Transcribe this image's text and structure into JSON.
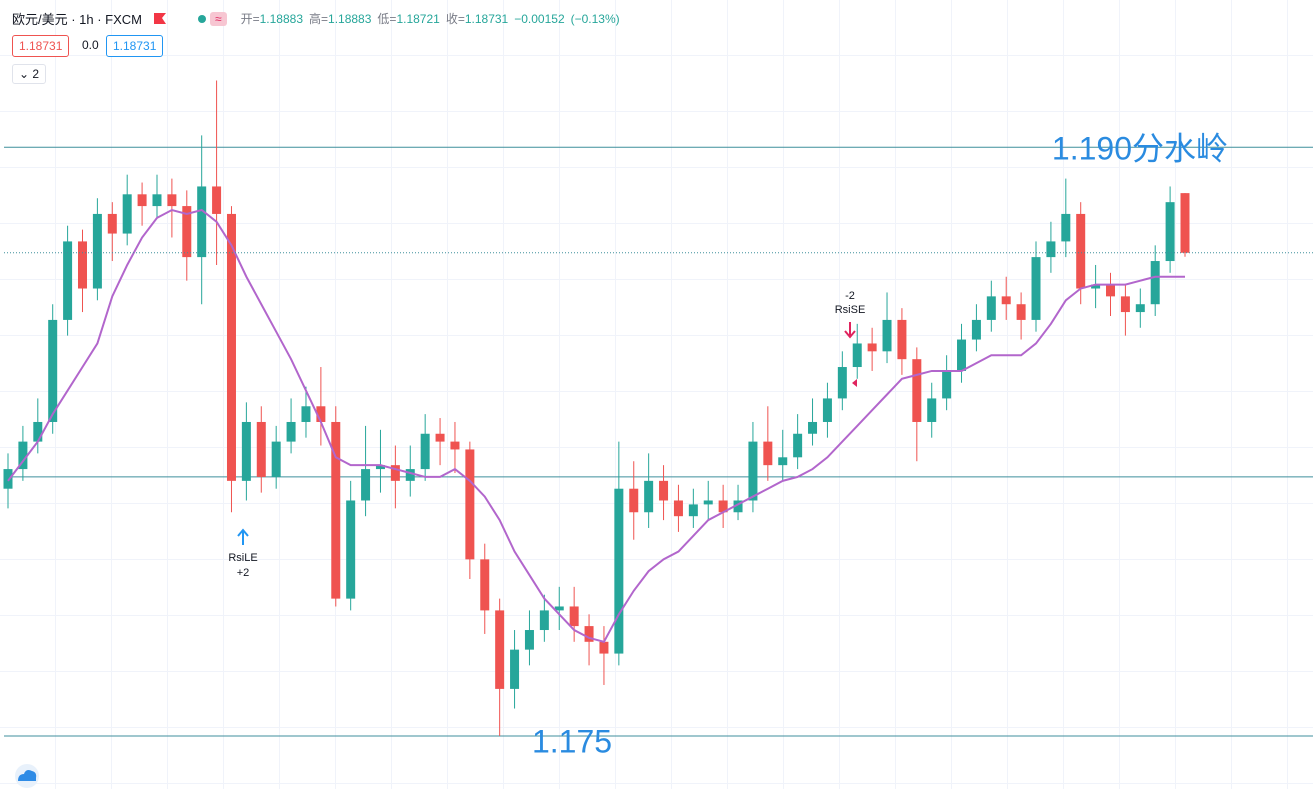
{
  "chart_data": {
    "type": "candlestick",
    "title": "欧元/美元 · 1h · FXCM",
    "badge": "≈",
    "ohlc": [
      {
        "label": "开=",
        "value": "1.18883"
      },
      {
        "label": "高=",
        "value": "1.18883"
      },
      {
        "label": "低=",
        "value": "1.18721"
      },
      {
        "label": "收=",
        "value": "1.18731"
      }
    ],
    "change": "−0.00152",
    "change_pct": "(−0.13%)",
    "bid": "1.18731",
    "spread": "0.0",
    "ask": "1.18731",
    "indicator_count": "2",
    "ylim": [
      1.17365,
      1.19375
    ],
    "up_color": "#26a69a",
    "down_color": "#ef5350",
    "open": [
      1.1813,
      1.1818,
      1.1825,
      1.183,
      1.1856,
      1.1876,
      1.1864,
      1.1883,
      1.1878,
      1.1888,
      1.1885,
      1.1888,
      1.1885,
      1.1872,
      1.189,
      1.1883,
      1.1815,
      1.183,
      1.1816,
      1.1825,
      1.183,
      1.1834,
      1.183,
      1.1785,
      1.181,
      1.1818,
      1.1819,
      1.1815,
      1.1818,
      1.1827,
      1.1825,
      1.1823,
      1.1795,
      1.1782,
      1.1762,
      1.1772,
      1.1777,
      1.1782,
      1.1783,
      1.1778,
      1.1774,
      1.1771,
      1.1813,
      1.1807,
      1.1815,
      1.181,
      1.1806,
      1.1809,
      1.181,
      1.1807,
      1.181,
      1.1825,
      1.1819,
      1.1821,
      1.1827,
      1.183,
      1.1836,
      1.1844,
      1.185,
      1.1848,
      1.1856,
      1.1846,
      1.183,
      1.1836,
      1.1843,
      1.1851,
      1.1856,
      1.1862,
      1.186,
      1.1856,
      1.1872,
      1.1876,
      1.1883,
      1.1864,
      1.1865,
      1.1862,
      1.1858,
      1.186,
      1.1871,
      1.18883
    ],
    "high": [
      1.1822,
      1.1829,
      1.1836,
      1.186,
      1.188,
      1.1879,
      1.1887,
      1.1886,
      1.1893,
      1.1891,
      1.1893,
      1.1892,
      1.1889,
      1.1903,
      1.1917,
      1.1885,
      1.1835,
      1.1834,
      1.1829,
      1.1836,
      1.1839,
      1.1844,
      1.1834,
      1.1815,
      1.1829,
      1.1828,
      1.1824,
      1.1824,
      1.1832,
      1.1831,
      1.183,
      1.1825,
      1.1799,
      1.1785,
      1.1777,
      1.1782,
      1.1786,
      1.1788,
      1.1788,
      1.1781,
      1.1778,
      1.1825,
      1.182,
      1.1822,
      1.1819,
      1.1814,
      1.1813,
      1.1815,
      1.1814,
      1.1814,
      1.183,
      1.1834,
      1.1828,
      1.1832,
      1.1836,
      1.184,
      1.1848,
      1.1855,
      1.1854,
      1.1863,
      1.1859,
      1.1849,
      1.184,
      1.1847,
      1.1855,
      1.186,
      1.1866,
      1.1867,
      1.1863,
      1.1876,
      1.1881,
      1.1892,
      1.1886,
      1.187,
      1.1868,
      1.1865,
      1.1864,
      1.1875,
      1.189,
      1.18883
    ],
    "low": [
      1.1808,
      1.1815,
      1.1822,
      1.1827,
      1.1852,
      1.1858,
      1.1861,
      1.1871,
      1.1875,
      1.188,
      1.1882,
      1.1877,
      1.1866,
      1.186,
      1.187,
      1.1807,
      1.181,
      1.1812,
      1.1813,
      1.1822,
      1.1826,
      1.1824,
      1.1783,
      1.1782,
      1.1806,
      1.1812,
      1.1808,
      1.1811,
      1.1815,
      1.1819,
      1.1817,
      1.179,
      1.1776,
      1.175,
      1.1757,
      1.1768,
      1.1774,
      1.1777,
      1.1774,
      1.1768,
      1.1763,
      1.1768,
      1.18,
      1.1803,
      1.1805,
      1.1802,
      1.1803,
      1.1805,
      1.1803,
      1.1805,
      1.1807,
      1.1815,
      1.1815,
      1.1818,
      1.1824,
      1.1826,
      1.1833,
      1.1841,
      1.1843,
      1.1845,
      1.1842,
      1.182,
      1.1826,
      1.1833,
      1.184,
      1.1848,
      1.1853,
      1.1856,
      1.1851,
      1.1853,
      1.1868,
      1.1872,
      1.186,
      1.1859,
      1.1857,
      1.1852,
      1.1854,
      1.1857,
      1.1868,
      1.18721
    ],
    "close": [
      1.1818,
      1.1825,
      1.183,
      1.1856,
      1.1876,
      1.1864,
      1.1883,
      1.1878,
      1.1888,
      1.1885,
      1.1888,
      1.1885,
      1.1872,
      1.189,
      1.1883,
      1.1815,
      1.183,
      1.1816,
      1.1825,
      1.183,
      1.1834,
      1.183,
      1.1785,
      1.181,
      1.1818,
      1.1819,
      1.1815,
      1.1818,
      1.1827,
      1.1825,
      1.1823,
      1.1795,
      1.1782,
      1.1762,
      1.1772,
      1.1777,
      1.1782,
      1.1783,
      1.1778,
      1.1774,
      1.1771,
      1.1813,
      1.1807,
      1.1815,
      1.181,
      1.1806,
      1.1809,
      1.181,
      1.1807,
      1.181,
      1.1825,
      1.1819,
      1.1821,
      1.1827,
      1.183,
      1.1836,
      1.1844,
      1.185,
      1.1848,
      1.1856,
      1.1846,
      1.183,
      1.1836,
      1.1843,
      1.1851,
      1.1856,
      1.1862,
      1.186,
      1.1856,
      1.1872,
      1.1876,
      1.1883,
      1.1864,
      1.1865,
      1.1862,
      1.1858,
      1.186,
      1.1871,
      1.1886,
      1.18731
    ],
    "ma": {
      "color": "#b266cc",
      "values": [
        1.1815,
        1.182,
        1.1825,
        1.1832,
        1.1838,
        1.1844,
        1.185,
        1.1862,
        1.187,
        1.1877,
        1.1882,
        1.1884,
        1.1883,
        1.1884,
        1.1881,
        1.1875,
        1.1867,
        1.186,
        1.1853,
        1.1846,
        1.1838,
        1.183,
        1.1821,
        1.1819,
        1.1819,
        1.1819,
        1.1818,
        1.1817,
        1.1816,
        1.1816,
        1.1818,
        1.1815,
        1.1811,
        1.1805,
        1.1797,
        1.1791,
        1.1785,
        1.1781,
        1.1777,
        1.1775,
        1.1774,
        1.1781,
        1.1787,
        1.1792,
        1.1795,
        1.1797,
        1.1801,
        1.1805,
        1.1807,
        1.1809,
        1.1811,
        1.1813,
        1.1815,
        1.1816,
        1.1818,
        1.1821,
        1.1825,
        1.1829,
        1.1833,
        1.1837,
        1.1841,
        1.1842,
        1.1843,
        1.1843,
        1.1843,
        1.1845,
        1.1847,
        1.1847,
        1.1847,
        1.185,
        1.1855,
        1.1861,
        1.1864,
        1.1865,
        1.1865,
        1.1865,
        1.1866,
        1.1867,
        1.1867,
        1.1867
      ]
    },
    "hlines": [
      {
        "value": 1.19,
        "label": "1.190分水岭"
      },
      {
        "value": 1.175,
        "label": "1.175"
      },
      {
        "value": 1.1816
      }
    ],
    "line_color": "#3f8f9c",
    "annotation_color": "#2a8be0",
    "signals": [
      {
        "label": "RsiLE",
        "amount": "+2"
      },
      {
        "label": "RsiSE",
        "amount": "-2"
      }
    ]
  }
}
